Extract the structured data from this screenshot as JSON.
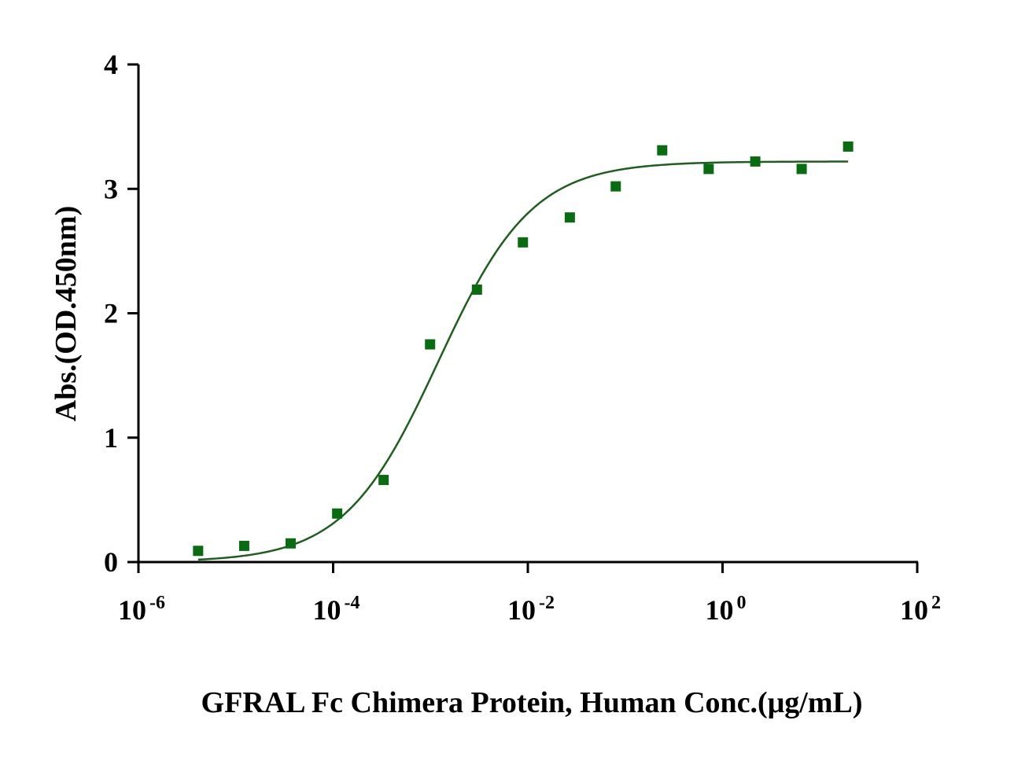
{
  "chart_data": {
    "type": "scatter",
    "xlabel": "GFRAL Fc Chimera Protein, Human Conc.(μg/mL)",
    "ylabel": "Abs.(OD.450nm)",
    "xscale": "log",
    "xlim": [
      1e-06,
      100
    ],
    "ylim": [
      0,
      4
    ],
    "x_ticks": [
      {
        "base": "10",
        "exp": "-6",
        "value": 1e-06
      },
      {
        "base": "10",
        "exp": "-4",
        "value": 0.0001
      },
      {
        "base": "10",
        "exp": "-2",
        "value": 0.01
      },
      {
        "base": "10",
        "exp": "0",
        "value": 1
      },
      {
        "base": "10",
        "exp": "2",
        "value": 100
      }
    ],
    "y_ticks": [
      "0",
      "1",
      "2",
      "3",
      "4"
    ],
    "grid": false,
    "colors": {
      "series": "#0b6b12",
      "curve": "#1f5e1f"
    },
    "series": [
      {
        "marker": "square",
        "x": [
          4.1e-06,
          1.22e-05,
          3.66e-05,
          0.00011,
          0.00033,
          0.00099,
          0.003,
          0.0089,
          0.027,
          0.08,
          0.24,
          0.72,
          2.17,
          6.5,
          19.5
        ],
        "y": [
          0.09,
          0.13,
          0.15,
          0.39,
          0.66,
          1.75,
          2.19,
          2.57,
          2.77,
          3.02,
          3.31,
          3.16,
          3.22,
          3.16,
          3.34
        ]
      }
    ],
    "fit_curve": {
      "model": "4PL",
      "bottom": 0.0,
      "top": 3.22,
      "ec50": 0.0012,
      "hill": 0.9,
      "x_range": [
        4.1e-06,
        19.5
      ]
    }
  }
}
